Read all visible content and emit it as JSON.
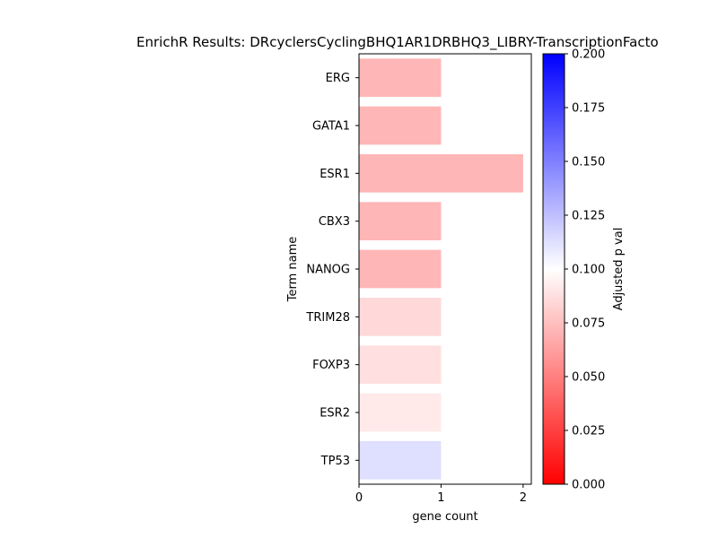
{
  "chart_data": {
    "type": "bar",
    "orientation": "horizontal",
    "title": "EnrichR Results: DRcyclersCyclingBHQ1AR1DRBHQ3_LIBRY-TranscriptionFacto",
    "xlabel": "gene count",
    "ylabel": "Term name",
    "categories": [
      "ERG",
      "GATA1",
      "ESR1",
      "CBX3",
      "NANOG",
      "TRIM28",
      "FOXP3",
      "ESR2",
      "TP53"
    ],
    "values": [
      1,
      1,
      2,
      1,
      1,
      1,
      1,
      1,
      1
    ],
    "adjusted_p_values": [
      0.043,
      0.043,
      0.043,
      0.043,
      0.043,
      0.07,
      0.075,
      0.083,
      0.125
    ],
    "xlim": [
      0,
      2.1
    ],
    "xticks": [
      "0",
      "1",
      "2"
    ],
    "colorbar": {
      "label": "Adjusted p val",
      "range": [
        0.0,
        0.2
      ],
      "ticks": [
        "0.000",
        "0.025",
        "0.050",
        "0.075",
        "0.100",
        "0.125",
        "0.150",
        "0.175",
        "0.200"
      ],
      "colors": [
        "#ff0000",
        "#ffffff",
        "#0000ff"
      ]
    }
  }
}
